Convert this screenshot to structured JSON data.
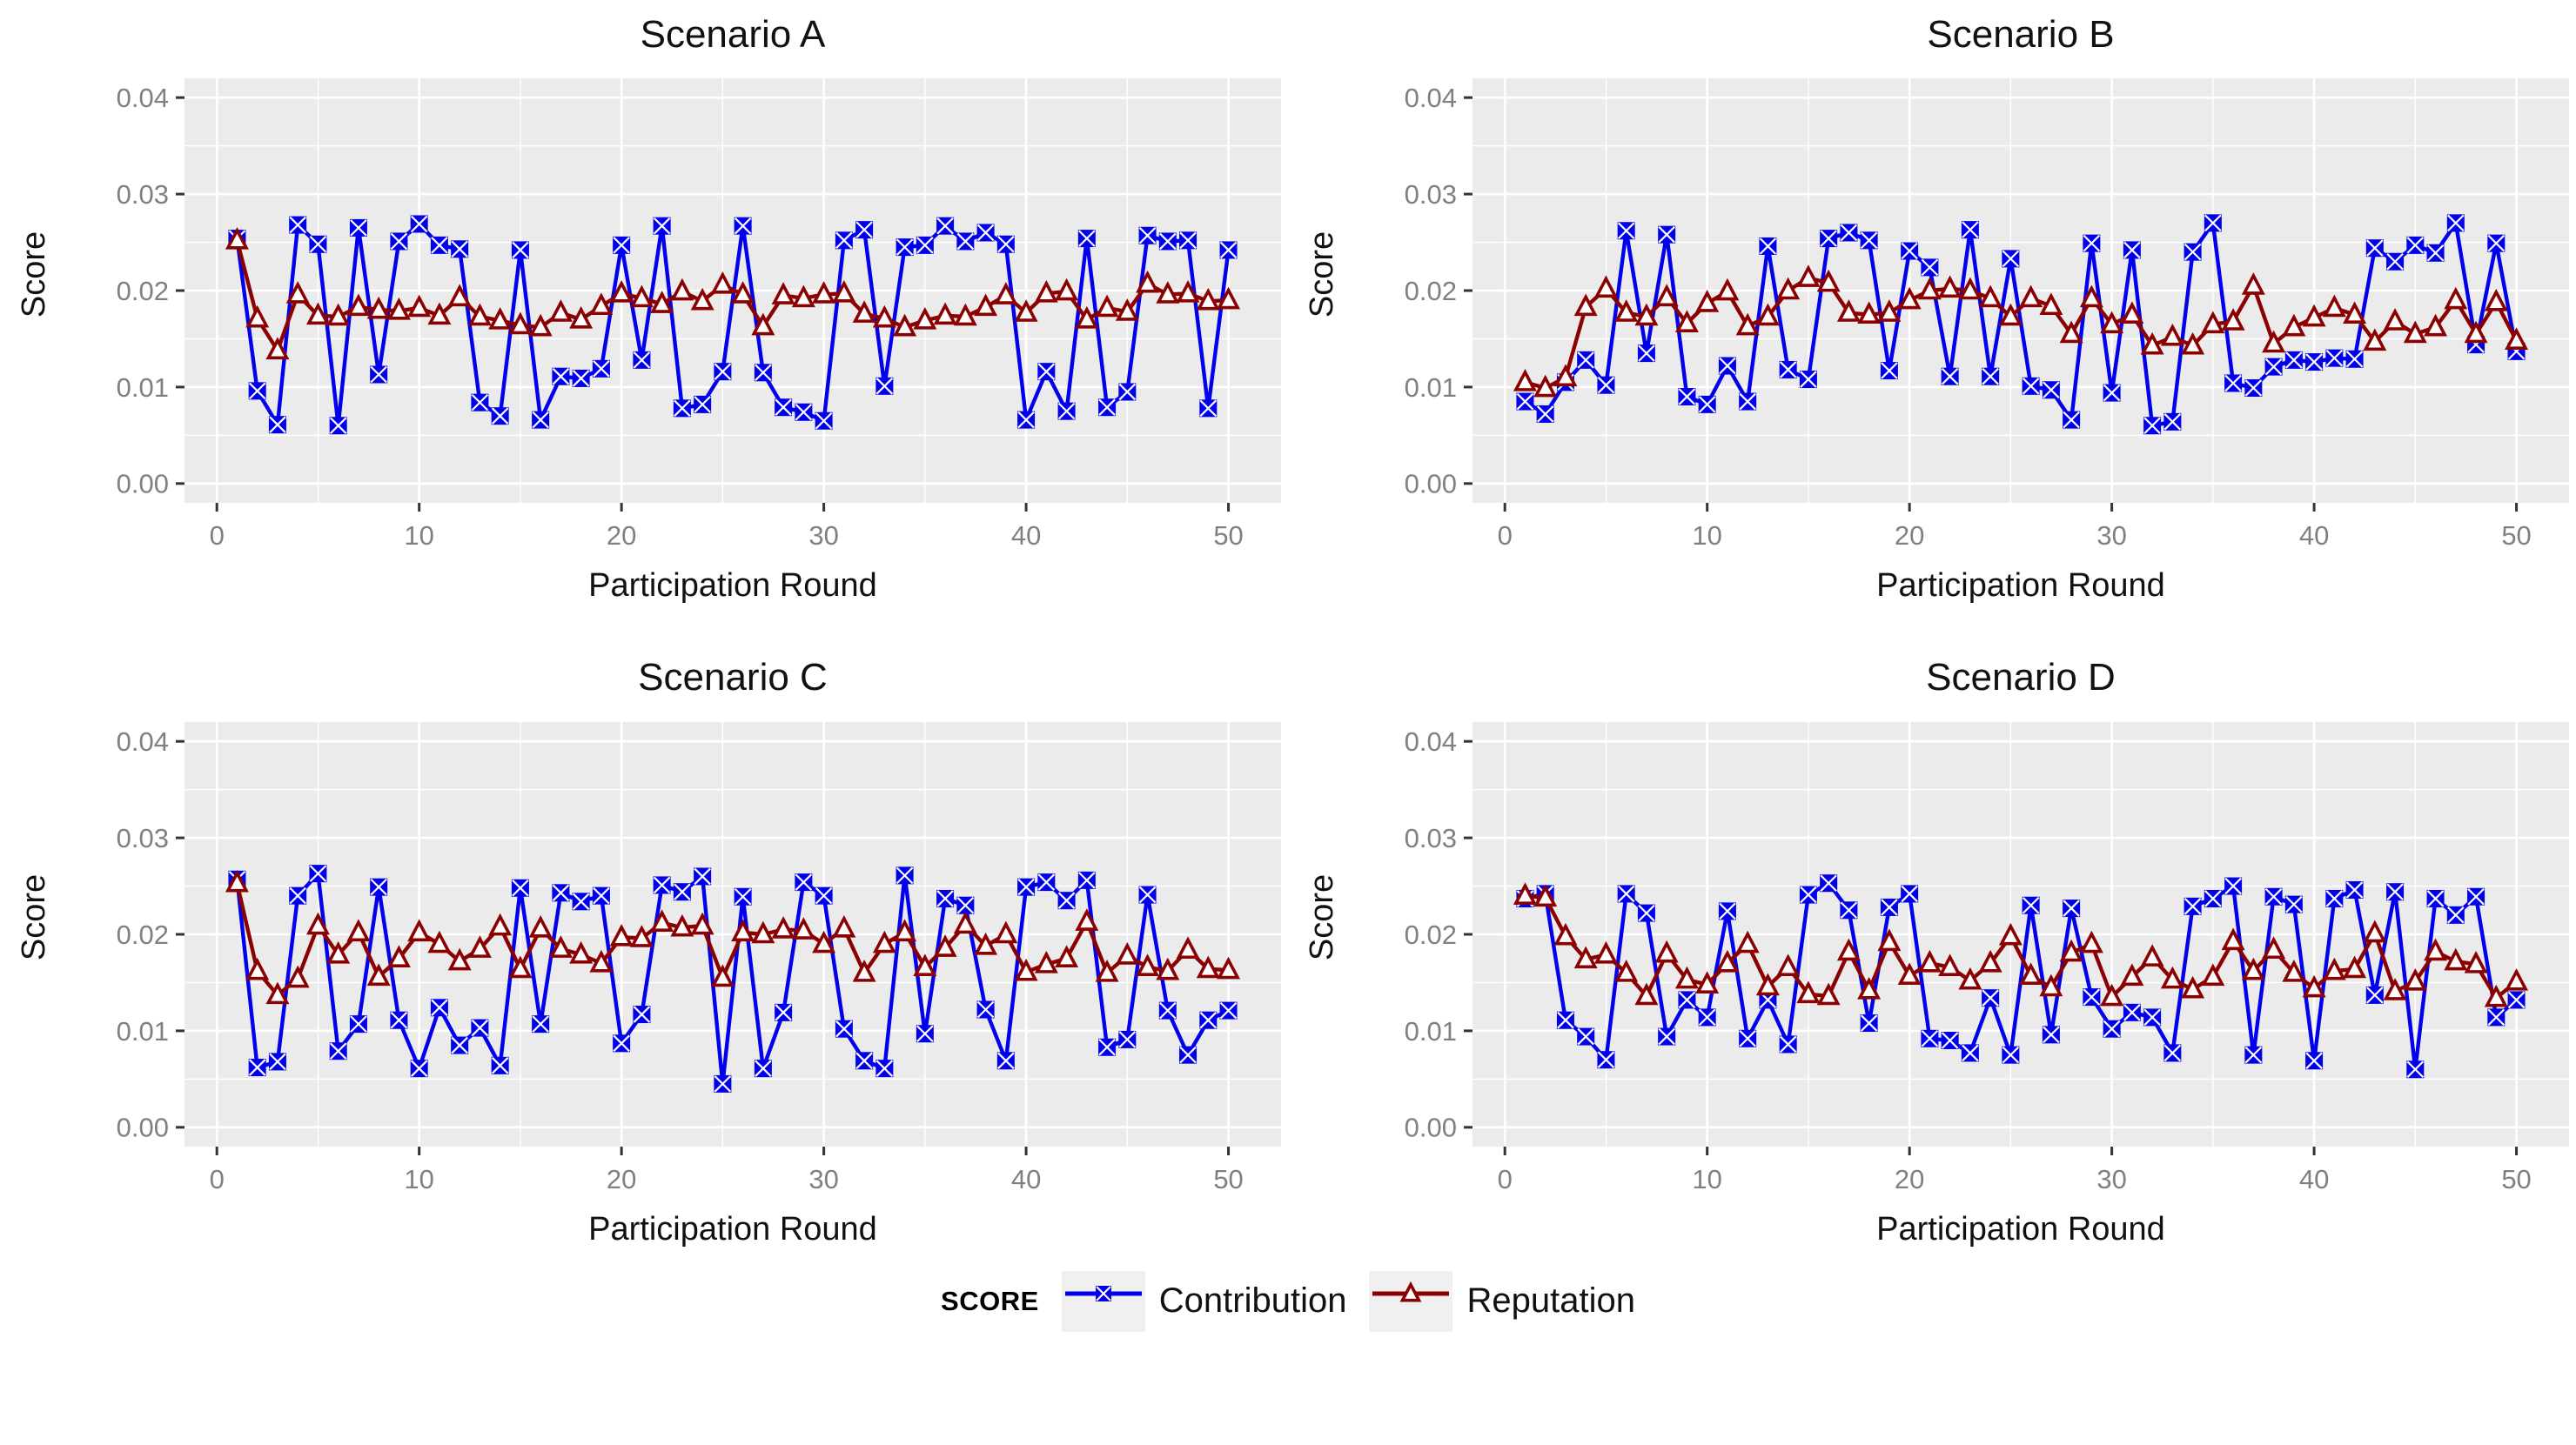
{
  "axes": {
    "ylabel": "Score",
    "xlabel": "Participation Round",
    "y_tick_labels": [
      "0.00",
      "0.01",
      "0.02",
      "0.03",
      "0.04"
    ],
    "y_tick_values": [
      0,
      0.01,
      0.02,
      0.03,
      0.04
    ],
    "x_tick_labels": [
      "0",
      "10",
      "20",
      "30",
      "40",
      "50"
    ],
    "x_tick_values": [
      0,
      10,
      20,
      30,
      40,
      50
    ],
    "ylim": [
      -0.002,
      0.042
    ],
    "xlim": [
      -1.6,
      52.6
    ],
    "grid": "on",
    "panel_background": "#EBEBEB",
    "gridline_color": "#FFFFFF",
    "tick_color": "#333333",
    "tick_label_color": "#808080"
  },
  "legend": {
    "title": "SCORE",
    "position": "bottom",
    "items": [
      {
        "label": "Contribution",
        "color": "#0000EE",
        "marker": "square-x-icon"
      },
      {
        "label": "Reputation",
        "color": "#8B0000",
        "marker": "triangle-icon"
      }
    ]
  },
  "chart_data": [
    {
      "type": "line",
      "title": "Scenario A",
      "xlabel": "Participation Round",
      "ylabel": "Score",
      "x": [
        1,
        2,
        3,
        4,
        5,
        6,
        7,
        8,
        9,
        10,
        11,
        12,
        13,
        14,
        15,
        16,
        17,
        18,
        19,
        20,
        21,
        22,
        23,
        24,
        25,
        26,
        27,
        28,
        29,
        30,
        31,
        32,
        33,
        34,
        35,
        36,
        37,
        38,
        39,
        40,
        41,
        42,
        43,
        44,
        45,
        46,
        47,
        48,
        49,
        50
      ],
      "series": [
        {
          "name": "Contribution",
          "values": [
            0.0254,
            0.0096,
            0.0061,
            0.0268,
            0.0248,
            0.006,
            0.0265,
            0.0113,
            0.0251,
            0.0269,
            0.0247,
            0.0243,
            0.0084,
            0.007,
            0.0242,
            0.0066,
            0.0111,
            0.0109,
            0.0119,
            0.0247,
            0.0128,
            0.0267,
            0.0078,
            0.0082,
            0.0116,
            0.0267,
            0.0115,
            0.0079,
            0.0074,
            0.0065,
            0.0252,
            0.0263,
            0.0101,
            0.0245,
            0.0247,
            0.0267,
            0.0251,
            0.026,
            0.0248,
            0.0066,
            0.0116,
            0.0075,
            0.0254,
            0.0079,
            0.0095,
            0.0257,
            0.0251,
            0.0252,
            0.0078,
            0.0242
          ]
        },
        {
          "name": "Reputation",
          "values": [
            0.0252,
            0.0171,
            0.0138,
            0.0196,
            0.0174,
            0.0173,
            0.0183,
            0.018,
            0.0179,
            0.0182,
            0.0174,
            0.0193,
            0.0173,
            0.0169,
            0.0164,
            0.0162,
            0.0177,
            0.017,
            0.0184,
            0.0197,
            0.0192,
            0.0186,
            0.0199,
            0.0189,
            0.0206,
            0.0196,
            0.0163,
            0.0195,
            0.0192,
            0.0196,
            0.0197,
            0.0176,
            0.0171,
            0.0162,
            0.0169,
            0.0174,
            0.0173,
            0.0183,
            0.0195,
            0.0177,
            0.0197,
            0.0199,
            0.017,
            0.0182,
            0.0178,
            0.0207,
            0.0196,
            0.0197,
            0.0189,
            0.019
          ]
        }
      ]
    },
    {
      "type": "line",
      "title": "Scenario B",
      "xlabel": "Participation Round",
      "ylabel": "Score",
      "x": [
        1,
        2,
        3,
        4,
        5,
        6,
        7,
        8,
        9,
        10,
        11,
        12,
        13,
        14,
        15,
        16,
        17,
        18,
        19,
        20,
        21,
        22,
        23,
        24,
        25,
        26,
        27,
        28,
        29,
        30,
        31,
        32,
        33,
        34,
        35,
        36,
        37,
        38,
        39,
        40,
        41,
        42,
        43,
        44,
        45,
        46,
        47,
        48,
        49,
        50
      ],
      "series": [
        {
          "name": "Contribution",
          "values": [
            0.0085,
            0.0072,
            0.0105,
            0.0128,
            0.0102,
            0.0262,
            0.0135,
            0.0258,
            0.009,
            0.0082,
            0.0122,
            0.0085,
            0.0246,
            0.0118,
            0.0108,
            0.0254,
            0.026,
            0.0252,
            0.0117,
            0.0241,
            0.0224,
            0.0111,
            0.0263,
            0.0111,
            0.0233,
            0.0101,
            0.0097,
            0.0066,
            0.0249,
            0.0094,
            0.0242,
            0.006,
            0.0064,
            0.024,
            0.027,
            0.0104,
            0.0099,
            0.0121,
            0.0128,
            0.0126,
            0.013,
            0.0129,
            0.0244,
            0.023,
            0.0247,
            0.0239,
            0.027,
            0.0144,
            0.0249,
            0.0137
          ]
        },
        {
          "name": "Reputation",
          "values": [
            0.0105,
            0.0099,
            0.011,
            0.0183,
            0.0202,
            0.0177,
            0.0173,
            0.0193,
            0.0166,
            0.0187,
            0.0199,
            0.0163,
            0.0173,
            0.02,
            0.0213,
            0.0208,
            0.0177,
            0.0175,
            0.0177,
            0.019,
            0.02,
            0.0202,
            0.02,
            0.0192,
            0.0173,
            0.0192,
            0.0184,
            0.0155,
            0.0192,
            0.0165,
            0.0175,
            0.0143,
            0.0152,
            0.0143,
            0.0165,
            0.0168,
            0.0205,
            0.0145,
            0.0162,
            0.0172,
            0.0182,
            0.0175,
            0.0147,
            0.0168,
            0.0155,
            0.0162,
            0.019,
            0.0155,
            0.0188,
            0.0148
          ]
        }
      ]
    },
    {
      "type": "line",
      "title": "Scenario C",
      "xlabel": "Participation Round",
      "ylabel": "Score",
      "x": [
        1,
        2,
        3,
        4,
        5,
        6,
        7,
        8,
        9,
        10,
        11,
        12,
        13,
        14,
        15,
        16,
        17,
        18,
        19,
        20,
        21,
        22,
        23,
        24,
        25,
        26,
        27,
        28,
        29,
        30,
        31,
        32,
        33,
        34,
        35,
        36,
        37,
        38,
        39,
        40,
        41,
        42,
        43,
        44,
        45,
        46,
        47,
        48,
        49,
        50
      ],
      "series": [
        {
          "name": "Contribution",
          "values": [
            0.0257,
            0.0062,
            0.0068,
            0.024,
            0.0263,
            0.0079,
            0.0107,
            0.0249,
            0.0111,
            0.0061,
            0.0124,
            0.0085,
            0.0103,
            0.0064,
            0.0248,
            0.0107,
            0.0243,
            0.0234,
            0.024,
            0.0087,
            0.0117,
            0.0251,
            0.0244,
            0.026,
            0.0045,
            0.0239,
            0.0061,
            0.0119,
            0.0254,
            0.024,
            0.0102,
            0.0069,
            0.0061,
            0.0261,
            0.0097,
            0.0237,
            0.023,
            0.0122,
            0.0069,
            0.0249,
            0.0254,
            0.0235,
            0.0256,
            0.0083,
            0.0091,
            0.0241,
            0.0121,
            0.0075,
            0.0111,
            0.0121
          ]
        },
        {
          "name": "Reputation",
          "values": [
            0.0253,
            0.0162,
            0.0137,
            0.0154,
            0.0209,
            0.0179,
            0.0202,
            0.0156,
            0.0175,
            0.0202,
            0.019,
            0.0172,
            0.0185,
            0.0208,
            0.0164,
            0.0206,
            0.0185,
            0.0179,
            0.017,
            0.0197,
            0.0196,
            0.0212,
            0.0207,
            0.0209,
            0.0155,
            0.0202,
            0.02,
            0.0205,
            0.0204,
            0.019,
            0.0206,
            0.016,
            0.019,
            0.0202,
            0.0166,
            0.0186,
            0.021,
            0.0188,
            0.02,
            0.0161,
            0.0169,
            0.0175,
            0.0213,
            0.016,
            0.0178,
            0.0166,
            0.0162,
            0.0184,
            0.0164,
            0.0163
          ]
        }
      ]
    },
    {
      "type": "line",
      "title": "Scenario D",
      "xlabel": "Participation Round",
      "ylabel": "Score",
      "x": [
        1,
        2,
        3,
        4,
        5,
        6,
        7,
        8,
        9,
        10,
        11,
        12,
        13,
        14,
        15,
        16,
        17,
        18,
        19,
        20,
        21,
        22,
        23,
        24,
        25,
        26,
        27,
        28,
        29,
        30,
        31,
        32,
        33,
        34,
        35,
        36,
        37,
        38,
        39,
        40,
        41,
        42,
        43,
        44,
        45,
        46,
        47,
        48,
        49,
        50
      ],
      "series": [
        {
          "name": "Contribution",
          "values": [
            0.0237,
            0.0242,
            0.0111,
            0.0094,
            0.007,
            0.0242,
            0.0222,
            0.0094,
            0.0132,
            0.0114,
            0.0224,
            0.0092,
            0.0132,
            0.0086,
            0.0241,
            0.0253,
            0.0225,
            0.0108,
            0.0228,
            0.0242,
            0.0092,
            0.009,
            0.0077,
            0.0134,
            0.0075,
            0.023,
            0.0096,
            0.0227,
            0.0135,
            0.0102,
            0.0119,
            0.0114,
            0.0077,
            0.0229,
            0.0237,
            0.025,
            0.0075,
            0.0239,
            0.0231,
            0.0069,
            0.0237,
            0.0246,
            0.0137,
            0.0244,
            0.006,
            0.0237,
            0.022,
            0.0239,
            0.0114,
            0.0132
          ]
        },
        {
          "name": "Reputation",
          "values": [
            0.024,
            0.0238,
            0.0198,
            0.0174,
            0.0179,
            0.016,
            0.0136,
            0.018,
            0.0153,
            0.0148,
            0.017,
            0.019,
            0.0146,
            0.0166,
            0.0138,
            0.0136,
            0.0182,
            0.0142,
            0.0192,
            0.0157,
            0.017,
            0.0166,
            0.0152,
            0.017,
            0.0198,
            0.0157,
            0.0145,
            0.0181,
            0.019,
            0.0135,
            0.0156,
            0.0176,
            0.0153,
            0.0143,
            0.0156,
            0.0193,
            0.0162,
            0.0184,
            0.016,
            0.0144,
            0.0162,
            0.0164,
            0.0201,
            0.0141,
            0.0151,
            0.0182,
            0.0172,
            0.0169,
            0.0134,
            0.0151
          ]
        }
      ]
    }
  ]
}
